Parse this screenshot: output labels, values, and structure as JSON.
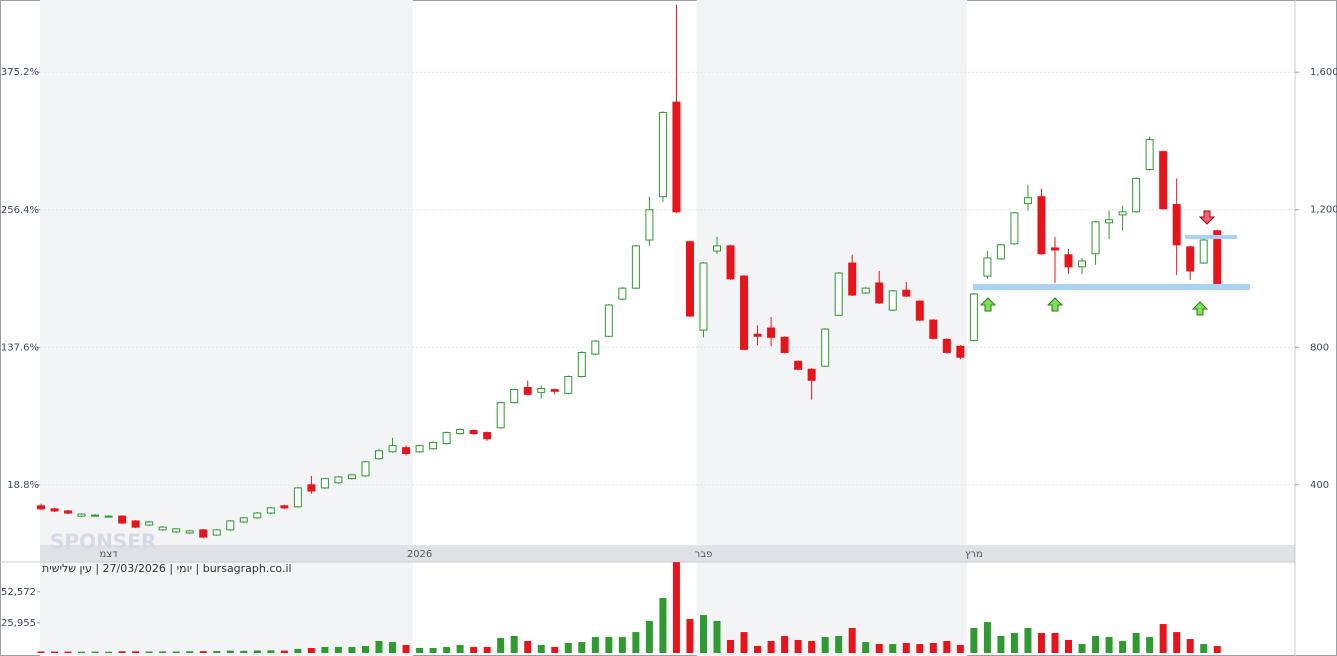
{
  "chart_data": [
    {
      "type": "candlestick",
      "info": "יומי | 27/03/2026 | עין שלישית | bursagraph.co.il",
      "watermark": "SPONSER",
      "up_color": "#2f9a2f",
      "down_color": "#e8141b",
      "grid": true,
      "categories": [
        null,
        null,
        null,
        null,
        null,
        "דצמ",
        null,
        null,
        null,
        null,
        null,
        null,
        null,
        null,
        null,
        null,
        null,
        null,
        null,
        null,
        null,
        null,
        null,
        null,
        null,
        null,
        null,
        null,
        "2026",
        null,
        null,
        null,
        null,
        null,
        null,
        null,
        null,
        null,
        null,
        null,
        null,
        null,
        null,
        null,
        null,
        null,
        null,
        null,
        null,
        "פבר",
        null,
        null,
        null,
        null,
        null,
        null,
        null,
        null,
        null,
        null,
        null,
        null,
        null,
        null,
        null,
        null,
        null,
        null,
        null,
        "מרץ",
        null,
        null,
        null,
        null,
        null,
        null,
        null,
        null,
        null,
        null,
        null,
        null,
        null,
        null,
        null,
        null,
        null,
        null
      ],
      "open": [
        339,
        330,
        324,
        309,
        309,
        307,
        309,
        295,
        283,
        269,
        263,
        260,
        269,
        254,
        269,
        292,
        304,
        318,
        339,
        336,
        400,
        391,
        406,
        418,
        426,
        476,
        496,
        508,
        496,
        505,
        520,
        549,
        558,
        552,
        566,
        639,
        683,
        669,
        677,
        666,
        715,
        780,
        832,
        940,
        972,
        1112,
        1238,
        1513,
        1107,
        850,
        1080,
        1095,
        1007,
        838,
        856,
        829,
        759,
        736,
        745,
        893,
        1045,
        958,
        987,
        908,
        966,
        934,
        879,
        823,
        803,
        820,
        1007,
        1057,
        1101,
        1218,
        1238,
        1089,
        1069,
        1034,
        1072,
        1162,
        1185,
        1194,
        1317,
        1369,
        1215,
        1092,
        1045,
        1139
      ],
      "high": [
        345,
        333,
        327,
        318,
        315,
        312,
        312,
        298,
        295,
        280,
        274,
        269,
        272,
        272,
        298,
        307,
        321,
        336,
        342,
        394,
        426,
        420,
        426,
        432,
        470,
        505,
        537,
        514,
        517,
        526,
        555,
        564,
        561,
        555,
        642,
        680,
        703,
        689,
        680,
        718,
        788,
        821,
        926,
        975,
        1098,
        1238,
        1486,
        1796,
        1110,
        1048,
        1121,
        1098,
        1010,
        864,
        888,
        832,
        762,
        739,
        856,
        1019,
        1069,
        975,
        1022,
        967,
        990,
        937,
        882,
        826,
        806,
        958,
        1080,
        1101,
        1194,
        1273,
        1261,
        1121,
        1086,
        1060,
        1168,
        1197,
        1212,
        1294,
        1413,
        1372,
        1291,
        1095,
        1115,
        1142
      ],
      "low": [
        327,
        321,
        315,
        306,
        306,
        304,
        286,
        274,
        280,
        266,
        260,
        257,
        245,
        251,
        266,
        289,
        301,
        315,
        330,
        333,
        374,
        388,
        403,
        415,
        423,
        473,
        493,
        485,
        493,
        502,
        517,
        546,
        546,
        528,
        563,
        636,
        660,
        651,
        663,
        663,
        712,
        777,
        829,
        937,
        969,
        1095,
        1223,
        1191,
        888,
        829,
        1071,
        996,
        791,
        806,
        803,
        782,
        733,
        648,
        742,
        891,
        949,
        955,
        926,
        905,
        946,
        876,
        823,
        782,
        765,
        817,
        999,
        1054,
        1098,
        1197,
        1069,
        987,
        1013,
        1013,
        1040,
        1115,
        1139,
        1191,
        1314,
        1200,
        1010,
        996,
        1042,
        972
      ],
      "close": [
        330,
        324,
        318,
        315,
        312,
        309,
        289,
        277,
        292,
        277,
        272,
        266,
        248,
        269,
        295,
        304,
        318,
        333,
        333,
        391,
        382,
        418,
        423,
        429,
        467,
        499,
        514,
        491,
        514,
        523,
        552,
        561,
        549,
        534,
        639,
        677,
        663,
        680,
        672,
        715,
        785,
        818,
        923,
        972,
        1095,
        1200,
        1483,
        1194,
        891,
        1045,
        1095,
        999,
        794,
        832,
        829,
        785,
        736,
        704,
        853,
        1016,
        952,
        972,
        929,
        964,
        949,
        879,
        826,
        785,
        771,
        955,
        1060,
        1098,
        1191,
        1235,
        1072,
        1083,
        1034,
        1051,
        1165,
        1171,
        1194,
        1291,
        1404,
        1203,
        1098,
        1022,
        1112,
        984
      ],
      "ylim": [
        225,
        1810
      ],
      "yticks": [
        {
          "value": 400,
          "label": "400"
        },
        {
          "value": 800,
          "label": "800"
        },
        {
          "value": 1200,
          "label": "1,200"
        },
        {
          "value": 1600,
          "label": "1,600"
        }
      ],
      "y2lim": [
        -33.2,
        437.6
      ],
      "y2ticks": [
        {
          "value": 18.8,
          "label": "18.8%"
        },
        {
          "value": 137.6,
          "label": "137.6%"
        },
        {
          "value": 256.4,
          "label": "256.4%"
        },
        {
          "value": 375.2,
          "label": "375.2%"
        }
      ]
    },
    {
      "type": "bar",
      "values": [
        1300,
        1200,
        1200,
        1100,
        1200,
        1100,
        1500,
        1500,
        1300,
        1400,
        1300,
        1500,
        1600,
        1700,
        2000,
        1900,
        2200,
        2300,
        2100,
        3500,
        4300,
        5200,
        5200,
        5200,
        6000,
        10300,
        9400,
        6900,
        4300,
        4300,
        5200,
        6900,
        5200,
        5200,
        12900,
        14600,
        10300,
        6900,
        5200,
        8600,
        9400,
        13700,
        13700,
        13700,
        18000,
        27500,
        47200,
        78100,
        29200,
        32600,
        27500,
        11200,
        18000,
        6000,
        10300,
        14600,
        11200,
        10300,
        13700,
        14600,
        21500,
        9400,
        7700,
        7700,
        8600,
        7700,
        8600,
        10300,
        6900,
        21500,
        26600,
        14600,
        17200,
        21500,
        17200,
        17200,
        11200,
        7700,
        14600,
        13700,
        10300,
        17200,
        13700,
        24900,
        18000,
        12000,
        7700,
        6000
      ],
      "ylim": [
        0,
        78200
      ],
      "yticks": [
        {
          "value": 25955,
          "label": "25,955"
        },
        {
          "value": 52572,
          "label": "52,572"
        }
      ]
    }
  ]
}
